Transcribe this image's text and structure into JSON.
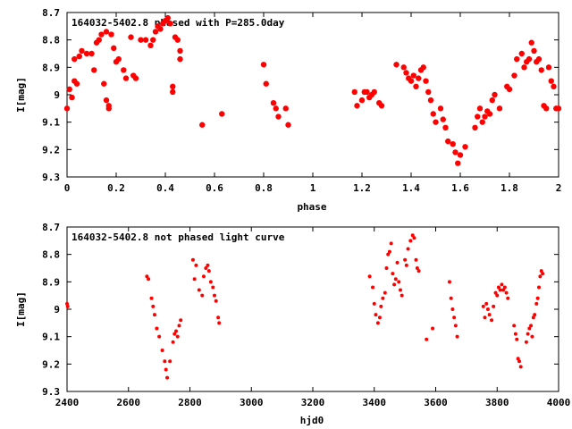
{
  "chart_data": [
    {
      "type": "scatter",
      "title": "164032-5402.8 phased with P=285.0day",
      "xlabel": "phase",
      "ylabel": "I[mag]",
      "xlim": [
        0,
        2
      ],
      "ylim": [
        8.7,
        9.3
      ],
      "y_inverted": true,
      "xticks": [
        0,
        0.2,
        0.4,
        0.6,
        0.8,
        1,
        1.2,
        1.4,
        1.6,
        1.8,
        2
      ],
      "xtick_labels": [
        "0",
        "0.2",
        "0.4",
        "0.6",
        "0.8",
        "1",
        "1.2",
        "1.4",
        "1.6",
        "1.8",
        "2"
      ],
      "yticks": [
        8.7,
        8.8,
        8.9,
        9,
        9.1,
        9.2,
        9.3
      ],
      "ytick_labels": [
        "8.7",
        "8.8",
        "8.9",
        "9",
        "9.1",
        "9.2",
        "9.3"
      ],
      "grid": false,
      "marker_color": "#ff0000",
      "points": [
        [
          0.0,
          9.05
        ],
        [
          0.01,
          8.98
        ],
        [
          0.02,
          9.01
        ],
        [
          0.03,
          8.87
        ],
        [
          0.03,
          8.95
        ],
        [
          0.04,
          8.96
        ],
        [
          0.05,
          8.86
        ],
        [
          0.06,
          8.84
        ],
        [
          0.08,
          8.85
        ],
        [
          0.1,
          8.85
        ],
        [
          0.11,
          8.91
        ],
        [
          0.12,
          8.81
        ],
        [
          0.13,
          8.8
        ],
        [
          0.14,
          8.78
        ],
        [
          0.15,
          8.96
        ],
        [
          0.16,
          9.02
        ],
        [
          0.16,
          8.77
        ],
        [
          0.17,
          9.05
        ],
        [
          0.17,
          9.04
        ],
        [
          0.18,
          8.78
        ],
        [
          0.19,
          8.83
        ],
        [
          0.2,
          8.88
        ],
        [
          0.21,
          8.87
        ],
        [
          0.23,
          8.91
        ],
        [
          0.24,
          8.94
        ],
        [
          0.26,
          8.79
        ],
        [
          0.27,
          8.93
        ],
        [
          0.28,
          8.94
        ],
        [
          0.3,
          8.8
        ],
        [
          0.32,
          8.8
        ],
        [
          0.34,
          8.82
        ],
        [
          0.35,
          8.8
        ],
        [
          0.36,
          8.77
        ],
        [
          0.37,
          8.75
        ],
        [
          0.38,
          8.76
        ],
        [
          0.39,
          8.74
        ],
        [
          0.4,
          8.73
        ],
        [
          0.41,
          8.72
        ],
        [
          0.42,
          8.74
        ],
        [
          0.43,
          8.97
        ],
        [
          0.43,
          8.99
        ],
        [
          0.44,
          8.79
        ],
        [
          0.45,
          8.8
        ],
        [
          0.46,
          8.84
        ],
        [
          0.46,
          8.87
        ],
        [
          0.55,
          9.11
        ],
        [
          0.63,
          9.07
        ],
        [
          0.8,
          8.89
        ],
        [
          0.81,
          8.96
        ],
        [
          0.84,
          9.03
        ],
        [
          0.85,
          9.05
        ],
        [
          0.86,
          9.08
        ],
        [
          0.89,
          9.05
        ],
        [
          0.9,
          9.11
        ],
        [
          1.17,
          8.99
        ],
        [
          1.18,
          9.04
        ],
        [
          1.2,
          9.02
        ],
        [
          1.21,
          8.99
        ],
        [
          1.22,
          8.99
        ],
        [
          1.23,
          9.01
        ],
        [
          1.24,
          9.0
        ],
        [
          1.25,
          8.99
        ],
        [
          1.27,
          9.03
        ],
        [
          1.28,
          9.04
        ],
        [
          1.34,
          8.89
        ],
        [
          1.37,
          8.9
        ],
        [
          1.38,
          8.92
        ],
        [
          1.39,
          8.94
        ],
        [
          1.4,
          8.95
        ],
        [
          1.41,
          8.93
        ],
        [
          1.42,
          8.97
        ],
        [
          1.43,
          8.94
        ],
        [
          1.44,
          8.91
        ],
        [
          1.45,
          8.9
        ],
        [
          1.46,
          8.95
        ],
        [
          1.47,
          8.99
        ],
        [
          1.48,
          9.02
        ],
        [
          1.49,
          9.07
        ],
        [
          1.5,
          9.1
        ],
        [
          1.52,
          9.05
        ],
        [
          1.53,
          9.09
        ],
        [
          1.54,
          9.12
        ],
        [
          1.55,
          9.17
        ],
        [
          1.57,
          9.18
        ],
        [
          1.58,
          9.21
        ],
        [
          1.59,
          9.25
        ],
        [
          1.6,
          9.22
        ],
        [
          1.62,
          9.19
        ],
        [
          1.66,
          9.12
        ],
        [
          1.67,
          9.08
        ],
        [
          1.68,
          9.05
        ],
        [
          1.69,
          9.1
        ],
        [
          1.7,
          9.08
        ],
        [
          1.71,
          9.06
        ],
        [
          1.72,
          9.07
        ],
        [
          1.73,
          9.02
        ],
        [
          1.74,
          9.0
        ],
        [
          1.76,
          9.05
        ],
        [
          1.79,
          8.97
        ],
        [
          1.8,
          8.98
        ],
        [
          1.82,
          8.93
        ],
        [
          1.83,
          8.87
        ],
        [
          1.85,
          8.85
        ],
        [
          1.86,
          8.9
        ],
        [
          1.87,
          8.88
        ],
        [
          1.88,
          8.87
        ],
        [
          1.89,
          8.81
        ],
        [
          1.9,
          8.84
        ],
        [
          1.91,
          8.88
        ],
        [
          1.92,
          8.87
        ],
        [
          1.93,
          8.91
        ],
        [
          1.94,
          9.04
        ],
        [
          1.95,
          9.05
        ],
        [
          1.96,
          8.9
        ],
        [
          1.97,
          8.95
        ],
        [
          1.98,
          8.97
        ],
        [
          1.99,
          9.05
        ],
        [
          2.0,
          9.05
        ]
      ]
    },
    {
      "type": "scatter",
      "title": "164032-5402.8 not phased light curve",
      "xlabel": "hjd0",
      "ylabel": "I[mag]",
      "xlim": [
        2400,
        4000
      ],
      "ylim": [
        8.7,
        9.3
      ],
      "y_inverted": true,
      "xticks": [
        2400,
        2600,
        2800,
        3000,
        3200,
        3400,
        3600,
        3800,
        4000
      ],
      "xtick_labels": [
        "2400",
        "2600",
        "2800",
        "3000",
        "3200",
        "3400",
        "3600",
        "3800",
        "4000"
      ],
      "yticks": [
        8.7,
        8.8,
        8.9,
        9,
        9.1,
        9.2,
        9.3
      ],
      "ytick_labels": [
        "8.7",
        "8.8",
        "8.9",
        "9",
        "9.1",
        "9.2",
        "9.3"
      ],
      "grid": false,
      "marker_color": "#ff0000",
      "points": [
        [
          2400,
          8.98
        ],
        [
          2402,
          8.99
        ],
        [
          2660,
          8.88
        ],
        [
          2665,
          8.89
        ],
        [
          2675,
          8.96
        ],
        [
          2680,
          8.99
        ],
        [
          2685,
          9.02
        ],
        [
          2692,
          9.07
        ],
        [
          2700,
          9.1
        ],
        [
          2710,
          9.15
        ],
        [
          2718,
          9.19
        ],
        [
          2722,
          9.22
        ],
        [
          2726,
          9.25
        ],
        [
          2735,
          9.19
        ],
        [
          2745,
          9.12
        ],
        [
          2750,
          9.09
        ],
        [
          2755,
          9.08
        ],
        [
          2760,
          9.1
        ],
        [
          2765,
          9.06
        ],
        [
          2770,
          9.04
        ],
        [
          2810,
          8.82
        ],
        [
          2815,
          8.89
        ],
        [
          2820,
          8.84
        ],
        [
          2830,
          8.93
        ],
        [
          2840,
          8.95
        ],
        [
          2845,
          8.88
        ],
        [
          2852,
          8.85
        ],
        [
          2858,
          8.84
        ],
        [
          2862,
          8.86
        ],
        [
          2868,
          8.9
        ],
        [
          2875,
          8.92
        ],
        [
          2880,
          8.95
        ],
        [
          2885,
          8.97
        ],
        [
          2892,
          9.03
        ],
        [
          2895,
          9.05
        ],
        [
          3385,
          8.88
        ],
        [
          3395,
          8.92
        ],
        [
          3400,
          8.98
        ],
        [
          3405,
          9.02
        ],
        [
          3412,
          9.05
        ],
        [
          3418,
          9.03
        ],
        [
          3422,
          8.99
        ],
        [
          3428,
          8.96
        ],
        [
          3435,
          8.94
        ],
        [
          3440,
          8.85
        ],
        [
          3445,
          8.8
        ],
        [
          3450,
          8.79
        ],
        [
          3455,
          8.76
        ],
        [
          3460,
          8.87
        ],
        [
          3465,
          8.91
        ],
        [
          3470,
          8.89
        ],
        [
          3475,
          8.83
        ],
        [
          3480,
          8.9
        ],
        [
          3485,
          8.93
        ],
        [
          3490,
          8.95
        ],
        [
          3500,
          8.82
        ],
        [
          3505,
          8.84
        ],
        [
          3510,
          8.78
        ],
        [
          3518,
          8.75
        ],
        [
          3525,
          8.73
        ],
        [
          3530,
          8.74
        ],
        [
          3536,
          8.82
        ],
        [
          3540,
          8.85
        ],
        [
          3545,
          8.86
        ],
        [
          3570,
          9.11
        ],
        [
          3590,
          9.07
        ],
        [
          3645,
          8.9
        ],
        [
          3650,
          8.96
        ],
        [
          3655,
          9.0
        ],
        [
          3660,
          9.03
        ],
        [
          3665,
          9.06
        ],
        [
          3670,
          9.1
        ],
        [
          3755,
          8.99
        ],
        [
          3760,
          9.03
        ],
        [
          3765,
          8.98
        ],
        [
          3770,
          9.0
        ],
        [
          3775,
          9.02
        ],
        [
          3782,
          9.04
        ],
        [
          3788,
          8.99
        ],
        [
          3795,
          8.94
        ],
        [
          3800,
          8.95
        ],
        [
          3805,
          8.92
        ],
        [
          3810,
          8.93
        ],
        [
          3815,
          8.91
        ],
        [
          3820,
          8.93
        ],
        [
          3825,
          8.92
        ],
        [
          3830,
          8.94
        ],
        [
          3835,
          8.96
        ],
        [
          3855,
          9.06
        ],
        [
          3860,
          9.09
        ],
        [
          3864,
          9.11
        ],
        [
          3868,
          9.18
        ],
        [
          3872,
          9.19
        ],
        [
          3877,
          9.21
        ],
        [
          3895,
          9.12
        ],
        [
          3900,
          9.09
        ],
        [
          3905,
          9.07
        ],
        [
          3910,
          9.06
        ],
        [
          3914,
          9.1
        ],
        [
          3918,
          9.03
        ],
        [
          3922,
          9.02
        ],
        [
          3928,
          8.98
        ],
        [
          3932,
          8.96
        ],
        [
          3936,
          8.92
        ],
        [
          3940,
          8.88
        ],
        [
          3944,
          8.86
        ],
        [
          3948,
          8.87
        ]
      ]
    }
  ]
}
